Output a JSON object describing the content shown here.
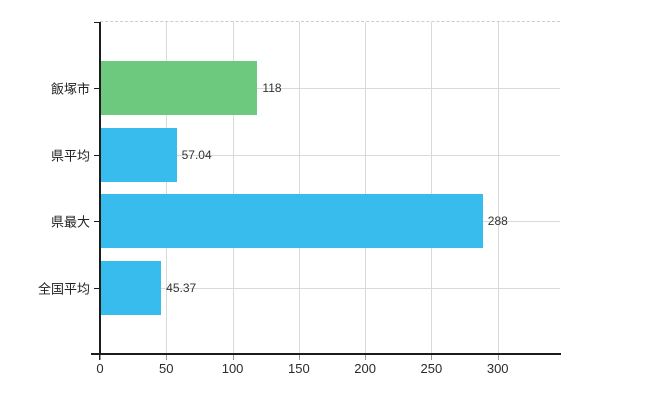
{
  "chart_data": {
    "type": "bar",
    "orientation": "horizontal",
    "title": "",
    "categories": [
      "飯塚市",
      "県平均",
      "県最大",
      "全国平均"
    ],
    "values": [
      118,
      57.04,
      288,
      45.37
    ],
    "value_labels": [
      "118",
      "57.04",
      "288",
      "45.37"
    ],
    "bar_colors": [
      "#6dc97d",
      "#38bcee",
      "#38bcee",
      "#38bcee"
    ],
    "x_ticks": [
      0,
      50,
      100,
      150,
      200,
      250,
      300
    ],
    "x_tick_labels": [
      "0",
      "50",
      "100",
      "150",
      "200",
      "250",
      "300"
    ],
    "xlim": [
      0,
      347
    ],
    "grid": true,
    "grid_top_border": "dashed",
    "legend": false
  },
  "colors": {
    "bar_green": "#6dc97d",
    "bar_blue": "#38bcee",
    "gridline": "#d9d9d9",
    "top_border": "#cccccc",
    "axis": "#1c1c1c",
    "tick": "#999999",
    "text": "#2b2b2b",
    "background": "#ffffff"
  }
}
